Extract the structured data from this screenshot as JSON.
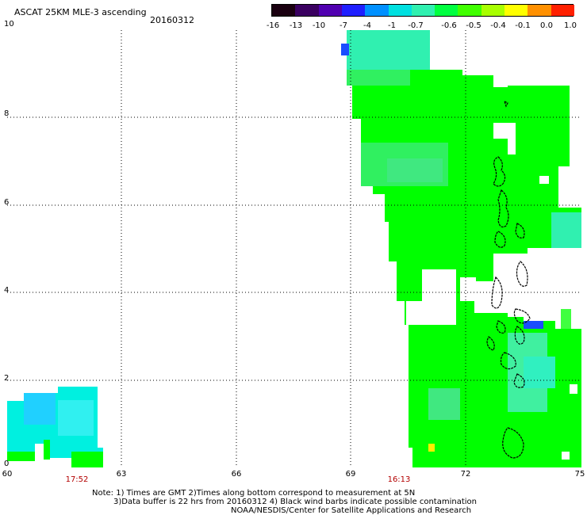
{
  "header": {
    "title": "ASCAT 25KM MLE-3 ascending",
    "date": "20160312"
  },
  "colorbar": {
    "labels": [
      "-16",
      "-13",
      "-10",
      "-7",
      "-4",
      "-1",
      "-0.7",
      "-0.6",
      "-0.5",
      "-0.4",
      "-0.1",
      "0.0",
      "1.0"
    ],
    "colors": [
      "#1a0010",
      "#3a0060",
      "#5000b0",
      "#1f1fff",
      "#0090ff",
      "#00e0e0",
      "#30f0b0",
      "#00ff40",
      "#40ff00",
      "#a8ff00",
      "#ffff00",
      "#ff9000",
      "#ff2000"
    ]
  },
  "axes": {
    "y_ticks": [
      "0",
      "2",
      "4",
      "6",
      "8",
      "10"
    ],
    "x_ticks": [
      "60",
      "63",
      "66",
      "69",
      "72",
      "75"
    ],
    "time_labels": [
      "17:52",
      "16:13"
    ]
  },
  "notes": {
    "line1": "Note: 1) Times are GMT 2)Times along bottom correspond to measurement at 5N",
    "line2": "3)Data buffer is 22 hrs from 20160312 4) Black wind barbs indicate possible contamination",
    "line3": "NOAA/NESDIS/Center for Satellite Applications and Research"
  },
  "map_colors": {
    "green": "#00ff00",
    "light_green": "#30f060",
    "cyan": "#00f0e0",
    "aqua": "#30f0b0",
    "blue": "#1a4dff",
    "coast": "#000000"
  }
}
